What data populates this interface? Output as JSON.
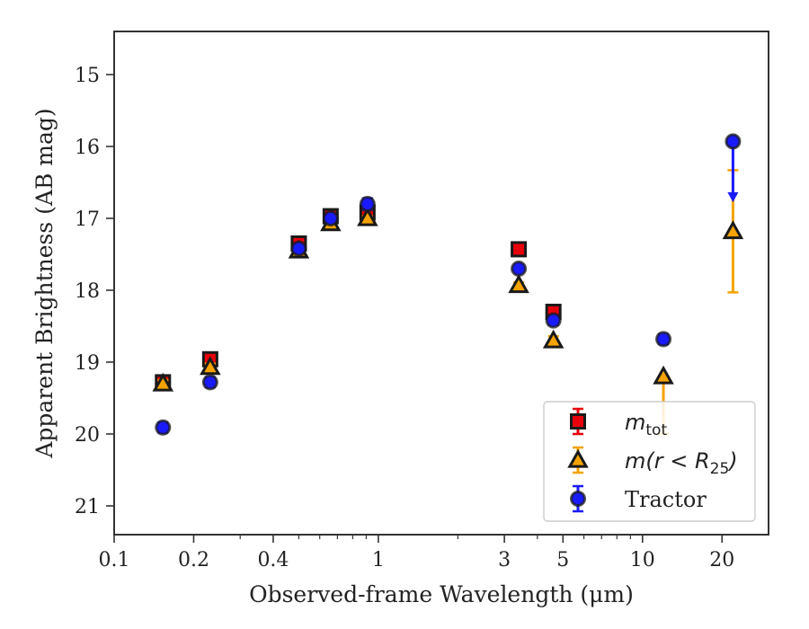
{
  "chart_data": {
    "type": "scatter",
    "xlabel": "Observed-frame Wavelength (μm)",
    "ylabel": "Apparent Brightness (AB mag)",
    "x_scale": "log",
    "y_inverted": true,
    "xlim": [
      0.1,
      30
    ],
    "ylim": [
      14.4,
      21.4
    ],
    "x_ticks": [
      0.1,
      0.2,
      0.4,
      1,
      3,
      5,
      10,
      20
    ],
    "x_tick_labels": [
      "0.1",
      "0.2",
      "0.4",
      "1",
      "3",
      "5",
      "10",
      "20"
    ],
    "y_ticks": [
      15,
      16,
      17,
      18,
      19,
      20,
      21
    ],
    "y_tick_labels": [
      "15",
      "16",
      "17",
      "18",
      "19",
      "20",
      "21"
    ],
    "grid": false,
    "legend_position": "lower-right",
    "series": [
      {
        "name": "m_tot",
        "legend_text_main": "m",
        "legend_text_sub": "tot",
        "marker": "square",
        "color": "#e8000b",
        "edge_color": "#1a1a1a",
        "points": [
          {
            "x": 0.153,
            "y": 19.28,
            "err": 0.05
          },
          {
            "x": 0.231,
            "y": 18.96,
            "err": 0.05
          },
          {
            "x": 0.5,
            "y": 17.35,
            "err": 0.03
          },
          {
            "x": 0.66,
            "y": 16.97,
            "err": 0.03
          },
          {
            "x": 0.91,
            "y": 16.92,
            "err": 0.03
          },
          {
            "x": 3.4,
            "y": 17.43,
            "err": 0.03
          },
          {
            "x": 4.6,
            "y": 18.3,
            "err": 0.03
          }
        ]
      },
      {
        "name": "m(r < R25)",
        "legend_text_main": "m(r < R",
        "legend_text_sub": "25",
        "legend_text_end": ")",
        "marker": "triangle",
        "color": "#f5a300",
        "edge_color": "#1a1a1a",
        "points": [
          {
            "x": 0.153,
            "y": 19.3,
            "err": 0.05
          },
          {
            "x": 0.231,
            "y": 19.07,
            "err": 0.05
          },
          {
            "x": 0.5,
            "y": 17.45,
            "err": 0.03
          },
          {
            "x": 0.66,
            "y": 17.07,
            "err": 0.03
          },
          {
            "x": 0.91,
            "y": 17.0,
            "err": 0.03
          },
          {
            "x": 3.4,
            "y": 17.93,
            "err": 0.04
          },
          {
            "x": 4.6,
            "y": 18.7,
            "err": 0.06
          },
          {
            "x": 12.0,
            "y": 19.2,
            "err_low": 0.8,
            "err_high": 0.0
          },
          {
            "x": 22.0,
            "y": 17.18,
            "err_low": 0.85,
            "err_high": 0.85
          }
        ]
      },
      {
        "name": "Tractor",
        "legend_text_main": "Tractor",
        "marker": "circle",
        "color": "#1a1aff",
        "edge_color": "#1a1a1a",
        "points": [
          {
            "x": 0.153,
            "y": 19.91,
            "err": 0.07
          },
          {
            "x": 0.231,
            "y": 19.28,
            "err": 0.07
          },
          {
            "x": 0.5,
            "y": 17.42,
            "err": 0.03
          },
          {
            "x": 0.66,
            "y": 17.0,
            "err": 0.03
          },
          {
            "x": 0.91,
            "y": 16.8,
            "err": 0.08
          },
          {
            "x": 3.4,
            "y": 17.7,
            "err": 0.04
          },
          {
            "x": 4.6,
            "y": 18.42,
            "err": 0.06
          },
          {
            "x": 12.0,
            "y": 18.68,
            "err": 0.07
          },
          {
            "x": 22.0,
            "y": 15.93,
            "upper_limit": true,
            "limit_to": 16.75
          }
        ]
      }
    ]
  }
}
